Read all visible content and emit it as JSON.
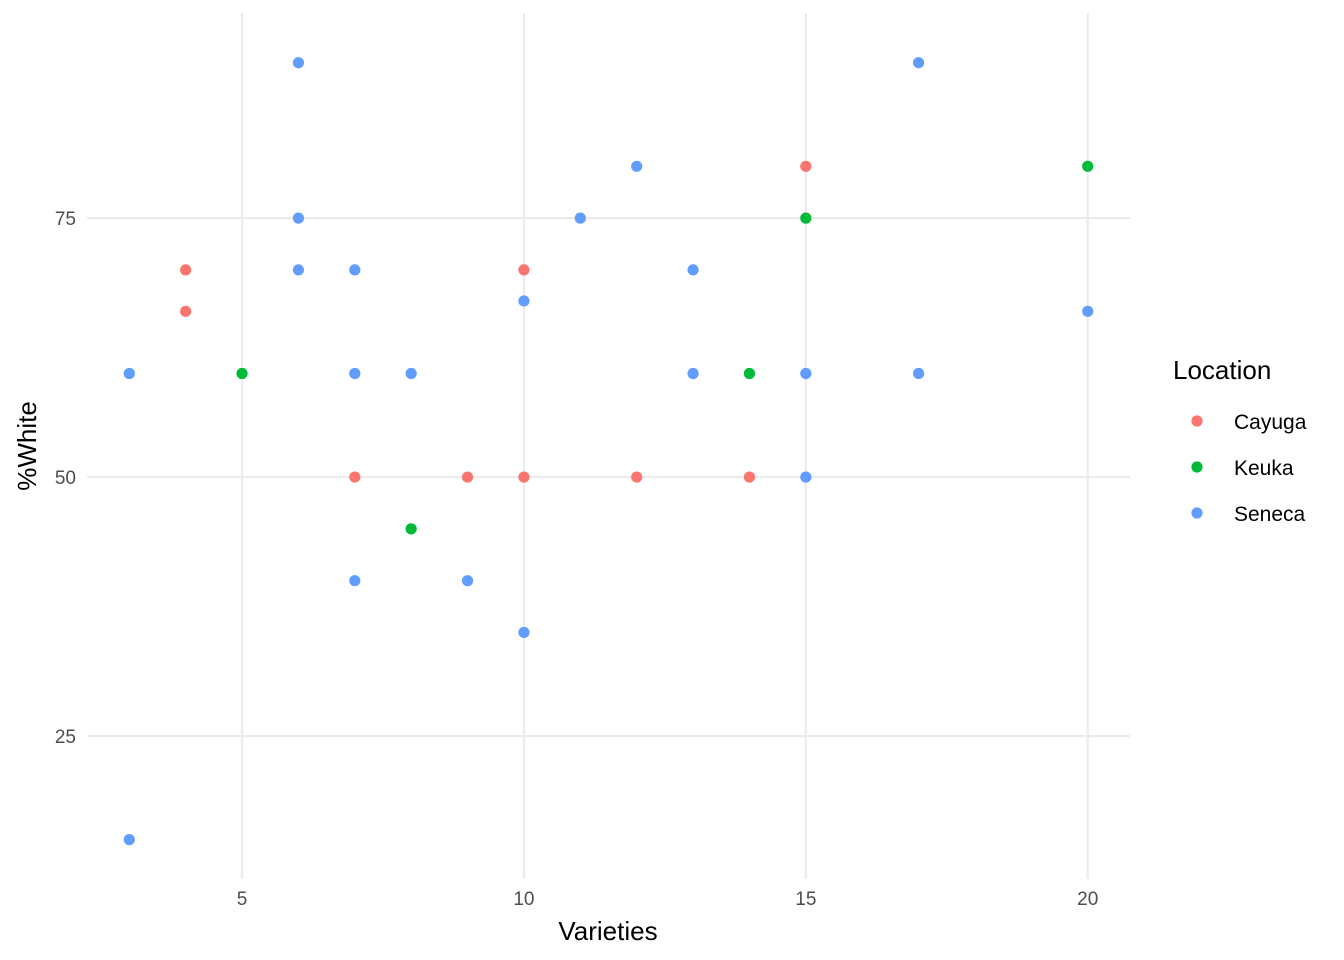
{
  "chart_data": {
    "type": "scatter",
    "xlabel": "Varieties",
    "ylabel": "%White",
    "xlim": [
      2.25,
      20.75
    ],
    "ylim": [
      11.2,
      94.8
    ],
    "x_ticks": [
      5,
      10,
      15,
      20
    ],
    "y_ticks": [
      25,
      50,
      75
    ],
    "grid": true,
    "legend": {
      "title": "Location",
      "position": "right"
    },
    "series": [
      {
        "name": "Cayuga",
        "color": "#f8766d",
        "points": [
          {
            "x": 4,
            "y": 70
          },
          {
            "x": 4,
            "y": 66
          },
          {
            "x": 7,
            "y": 50
          },
          {
            "x": 9,
            "y": 50
          },
          {
            "x": 10,
            "y": 70
          },
          {
            "x": 10,
            "y": 50
          },
          {
            "x": 12,
            "y": 50
          },
          {
            "x": 14,
            "y": 50
          },
          {
            "x": 15,
            "y": 80
          }
        ]
      },
      {
        "name": "Keuka",
        "color": "#00ba38",
        "points": [
          {
            "x": 5,
            "y": 60
          },
          {
            "x": 8,
            "y": 45
          },
          {
            "x": 14,
            "y": 60
          },
          {
            "x": 15,
            "y": 75
          },
          {
            "x": 20,
            "y": 80
          }
        ]
      },
      {
        "name": "Seneca",
        "color": "#619cff",
        "points": [
          {
            "x": 3,
            "y": 60
          },
          {
            "x": 3,
            "y": 15
          },
          {
            "x": 6,
            "y": 90
          },
          {
            "x": 6,
            "y": 75
          },
          {
            "x": 6,
            "y": 70
          },
          {
            "x": 7,
            "y": 70
          },
          {
            "x": 7,
            "y": 60
          },
          {
            "x": 7,
            "y": 40
          },
          {
            "x": 8,
            "y": 60
          },
          {
            "x": 9,
            "y": 40
          },
          {
            "x": 10,
            "y": 67
          },
          {
            "x": 10,
            "y": 35
          },
          {
            "x": 11,
            "y": 75
          },
          {
            "x": 12,
            "y": 80
          },
          {
            "x": 13,
            "y": 70
          },
          {
            "x": 13,
            "y": 60
          },
          {
            "x": 15,
            "y": 60
          },
          {
            "x": 15,
            "y": 50
          },
          {
            "x": 17,
            "y": 90
          },
          {
            "x": 17,
            "y": 60
          },
          {
            "x": 20,
            "y": 66
          }
        ]
      }
    ]
  }
}
